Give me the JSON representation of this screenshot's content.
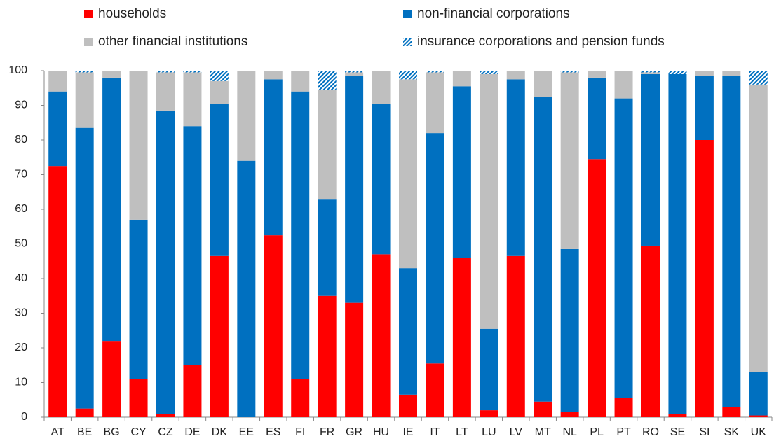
{
  "chart_data": {
    "type": "stacked_bar",
    "categories": [
      "AT",
      "BE",
      "BG",
      "CY",
      "CZ",
      "DE",
      "DK",
      "EE",
      "ES",
      "FI",
      "FR",
      "GR",
      "HU",
      "IE",
      "IT",
      "LT",
      "LU",
      "LV",
      "MT",
      "NL",
      "PL",
      "PT",
      "RO",
      "SE",
      "SI",
      "SK",
      "UK"
    ],
    "series": [
      {
        "name": "households",
        "color": "#ff0000",
        "values": [
          72.5,
          2.5,
          22,
          11,
          1,
          15,
          46.5,
          0,
          52.5,
          11,
          35,
          33,
          47,
          6.5,
          15.5,
          46,
          2,
          46.5,
          4.5,
          1.5,
          74.5,
          5.5,
          49.5,
          1,
          80,
          3,
          0.5
        ]
      },
      {
        "name": "non-financial corporations",
        "color": "#0070c0",
        "values": [
          21.5,
          81,
          76,
          46,
          87.5,
          69,
          44,
          74,
          45,
          83,
          28,
          65.5,
          43.5,
          36.5,
          66.5,
          49.5,
          23.5,
          51,
          88,
          47,
          23.5,
          86.5,
          49.5,
          98,
          18.5,
          95.5,
          12.5
        ]
      },
      {
        "name": "other financial institutions",
        "color": "#bfbfbf",
        "values": [
          6,
          16,
          2,
          43,
          11,
          15.5,
          6.5,
          26,
          2.5,
          6,
          31.5,
          1,
          9.5,
          54.5,
          17.5,
          4.5,
          73.5,
          2.5,
          7.5,
          51,
          2,
          8,
          0.5,
          0,
          1.5,
          1.5,
          83
        ]
      },
      {
        "name": "insurance corporations and pension funds",
        "color": "#0070c0",
        "pattern": "hatch",
        "values": [
          0,
          0.5,
          0,
          0,
          0.5,
          0.5,
          3,
          0,
          0,
          0,
          5.5,
          0.5,
          0,
          2.5,
          0.5,
          0,
          1,
          0,
          0,
          0.5,
          0,
          0,
          0.5,
          1,
          0,
          0,
          4
        ]
      }
    ],
    "ylim": [
      0,
      100
    ],
    "yticks": [
      0,
      10,
      20,
      30,
      40,
      50,
      60,
      70,
      80,
      90,
      100
    ],
    "grid": false,
    "legend": "top"
  }
}
